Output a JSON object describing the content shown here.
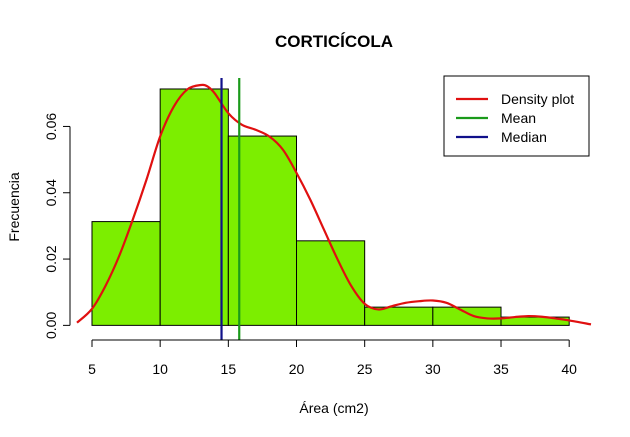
{
  "chart_data": {
    "type": "histogram",
    "title": "CORTICÍCOLA",
    "xlabel": "Área (cm2)",
    "ylabel": "Frecuencia",
    "xlim": [
      3.9,
      41.6
    ],
    "ylim": [
      -0.002,
      0.0725
    ],
    "x_ticks": [
      5,
      10,
      15,
      20,
      25,
      30,
      35,
      40
    ],
    "y_ticks": [
      0.0,
      0.02,
      0.04,
      0.06
    ],
    "y_tick_labels": [
      "0.00",
      "0.02",
      "0.04",
      "0.06"
    ],
    "bins": [
      {
        "x0": 5,
        "x1": 10,
        "value": 0.0313
      },
      {
        "x0": 10,
        "x1": 15,
        "value": 0.0713
      },
      {
        "x0": 15,
        "x1": 20,
        "value": 0.0571
      },
      {
        "x0": 20,
        "x1": 25,
        "value": 0.0255
      },
      {
        "x0": 25,
        "x1": 30,
        "value": 0.0055
      },
      {
        "x0": 30,
        "x1": 35,
        "value": 0.0055
      },
      {
        "x0": 35,
        "x1": 40,
        "value": 0.0025
      }
    ],
    "bar_color": "#7cee00",
    "density": {
      "name": "Density plot",
      "color": "#e01010",
      "x": [
        3.9,
        5,
        6,
        7,
        8,
        9,
        10,
        11,
        12,
        13,
        13.5,
        14,
        15,
        16,
        17,
        18,
        19,
        20,
        21,
        22,
        23,
        24,
        25,
        26,
        27,
        28,
        29,
        30,
        31,
        32,
        33,
        34,
        35,
        36,
        37,
        38,
        39,
        40,
        41.6
      ],
      "y": [
        0.0008,
        0.005,
        0.012,
        0.021,
        0.032,
        0.044,
        0.057,
        0.066,
        0.0712,
        0.0725,
        0.072,
        0.07,
        0.064,
        0.0605,
        0.059,
        0.057,
        0.053,
        0.046,
        0.038,
        0.029,
        0.02,
        0.012,
        0.0065,
        0.0048,
        0.0058,
        0.0068,
        0.0073,
        0.0075,
        0.0068,
        0.0048,
        0.0028,
        0.0021,
        0.0021,
        0.0025,
        0.0028,
        0.0026,
        0.0021,
        0.0015,
        0.0003
      ]
    },
    "mean": {
      "name": "Mean",
      "value": 15.8,
      "color": "#1a9a1a"
    },
    "median": {
      "name": "Median",
      "value": 14.5,
      "color": "#10108a"
    },
    "legend": {
      "position": "top-right",
      "entries": [
        {
          "label": "Density plot",
          "color": "#e01010"
        },
        {
          "label": "Mean",
          "color": "#1a9a1a"
        },
        {
          "label": "Median",
          "color": "#10108a"
        }
      ]
    },
    "grid": false
  }
}
